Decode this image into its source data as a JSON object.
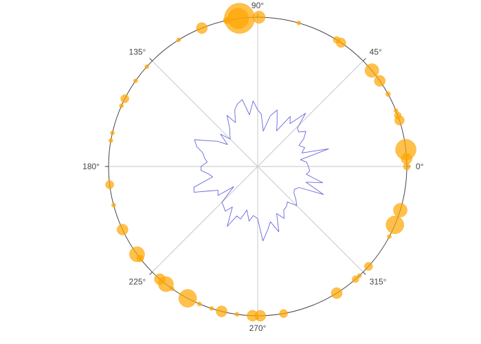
{
  "chart_data": {
    "type": "scatter",
    "subtype": "polar",
    "title": "",
    "angular_axis": {
      "tick_labels": [
        "0°",
        "45°",
        "90°",
        "135°",
        "180°",
        "225°",
        "270°",
        "315°"
      ],
      "tick_values": [
        0,
        45,
        90,
        135,
        180,
        225,
        270,
        315
      ],
      "direction": "counterclockwise",
      "rotation": 0
    },
    "radial_axis": {
      "range": [
        0,
        1
      ],
      "tick_labels_visible": false
    },
    "grid": true,
    "legend": "none",
    "series": [
      {
        "kind": "markers",
        "color": "#FFA500",
        "opacity": 0.7,
        "r": 1,
        "points": [
          {
            "theta": 0,
            "size": 10
          },
          {
            "theta": 6.5,
            "size": 30
          },
          {
            "theta": 3,
            "size": 16
          },
          {
            "theta": 18,
            "size": 14
          },
          {
            "theta": 20,
            "size": 10
          },
          {
            "theta": 22,
            "size": 6
          },
          {
            "theta": 29,
            "size": 7
          },
          {
            "theta": 35,
            "size": 16
          },
          {
            "theta": 40,
            "size": 20
          },
          {
            "theta": 56,
            "size": 14
          },
          {
            "theta": 58,
            "size": 10
          },
          {
            "theta": 74,
            "size": 6
          },
          {
            "theta": 89.5,
            "size": 18
          },
          {
            "theta": 97,
            "size": 44
          },
          {
            "theta": 97.5,
            "size": 30
          },
          {
            "theta": 102,
            "size": 10
          },
          {
            "theta": 112,
            "size": 16
          },
          {
            "theta": 122,
            "size": 6
          },
          {
            "theta": 138,
            "size": 6
          },
          {
            "theta": 145,
            "size": 6
          },
          {
            "theta": 153,
            "size": 12
          },
          {
            "theta": 156,
            "size": 6
          },
          {
            "theta": 167,
            "size": 6
          },
          {
            "theta": 170,
            "size": 6
          },
          {
            "theta": 187,
            "size": 12
          },
          {
            "theta": 195,
            "size": 6
          },
          {
            "theta": 205,
            "size": 16
          },
          {
            "theta": 216,
            "size": 22
          },
          {
            "theta": 218,
            "size": 10
          },
          {
            "theta": 229,
            "size": 16
          },
          {
            "theta": 232,
            "size": 22
          },
          {
            "theta": 235,
            "size": 6
          },
          {
            "theta": 242,
            "size": 26
          },
          {
            "theta": 247,
            "size": 6
          },
          {
            "theta": 252,
            "size": 6
          },
          {
            "theta": 256,
            "size": 16
          },
          {
            "theta": 262,
            "size": 6
          },
          {
            "theta": 268,
            "size": 16
          },
          {
            "theta": 271,
            "size": 16
          },
          {
            "theta": 280,
            "size": 12
          },
          {
            "theta": 302,
            "size": 16
          },
          {
            "theta": 311,
            "size": 10
          },
          {
            "theta": 313,
            "size": 6
          },
          {
            "theta": 318,
            "size": 12
          },
          {
            "theta": 332,
            "size": 6
          },
          {
            "theta": 337,
            "size": 26
          },
          {
            "theta": 343,
            "size": 20
          }
        ]
      },
      {
        "kind": "line",
        "color": "#6666dd",
        "points": [
          {
            "theta": 0,
            "r": 0.34
          },
          {
            "theta": 5,
            "r": 0.33
          },
          {
            "theta": 9,
            "r": 0.29
          },
          {
            "theta": 14,
            "r": 0.49
          },
          {
            "theta": 17,
            "r": 0.31
          },
          {
            "theta": 22,
            "r": 0.34
          },
          {
            "theta": 27,
            "r": 0.31
          },
          {
            "theta": 31,
            "r": 0.36
          },
          {
            "theta": 36,
            "r": 0.4
          },
          {
            "theta": 40,
            "r": 0.36
          },
          {
            "theta": 44,
            "r": 0.37
          },
          {
            "theta": 48,
            "r": 0.48
          },
          {
            "theta": 53,
            "r": 0.36
          },
          {
            "theta": 57,
            "r": 0.4
          },
          {
            "theta": 62,
            "r": 0.27
          },
          {
            "theta": 66,
            "r": 0.32
          },
          {
            "theta": 71,
            "r": 0.4
          },
          {
            "theta": 76,
            "r": 0.35
          },
          {
            "theta": 81,
            "r": 0.24
          },
          {
            "theta": 86,
            "r": 0.35
          },
          {
            "theta": 90,
            "r": 0.38
          },
          {
            "theta": 94,
            "r": 0.44
          },
          {
            "theta": 99,
            "r": 0.35
          },
          {
            "theta": 103,
            "r": 0.46
          },
          {
            "theta": 108,
            "r": 0.44
          },
          {
            "theta": 112,
            "r": 0.41
          },
          {
            "theta": 117,
            "r": 0.33
          },
          {
            "theta": 121,
            "r": 0.4
          },
          {
            "theta": 126,
            "r": 0.32
          },
          {
            "theta": 130,
            "r": 0.29
          },
          {
            "theta": 135,
            "r": 0.26
          },
          {
            "theta": 139,
            "r": 0.33
          },
          {
            "theta": 144,
            "r": 0.25
          },
          {
            "theta": 148,
            "r": 0.32
          },
          {
            "theta": 153,
            "r": 0.38
          },
          {
            "theta": 157,
            "r": 0.46
          },
          {
            "theta": 162,
            "r": 0.43
          },
          {
            "theta": 166,
            "r": 0.38
          },
          {
            "theta": 171,
            "r": 0.36
          },
          {
            "theta": 175,
            "r": 0.34
          },
          {
            "theta": 180,
            "r": 0.38
          },
          {
            "theta": 184,
            "r": 0.38
          },
          {
            "theta": 189,
            "r": 0.33
          },
          {
            "theta": 193,
            "r": 0.31
          },
          {
            "theta": 198,
            "r": 0.45
          },
          {
            "theta": 202,
            "r": 0.46
          },
          {
            "theta": 207,
            "r": 0.36
          },
          {
            "theta": 211,
            "r": 0.31
          },
          {
            "theta": 216,
            "r": 0.33
          },
          {
            "theta": 220,
            "r": 0.21
          },
          {
            "theta": 225,
            "r": 0.34
          },
          {
            "theta": 229,
            "r": 0.35
          },
          {
            "theta": 234,
            "r": 0.37
          },
          {
            "theta": 238,
            "r": 0.32
          },
          {
            "theta": 243,
            "r": 0.45
          },
          {
            "theta": 247,
            "r": 0.36
          },
          {
            "theta": 252,
            "r": 0.37
          },
          {
            "theta": 256,
            "r": 0.3
          },
          {
            "theta": 261,
            "r": 0.37
          },
          {
            "theta": 265,
            "r": 0.33
          },
          {
            "theta": 270,
            "r": 0.35
          },
          {
            "theta": 274,
            "r": 0.5
          },
          {
            "theta": 279,
            "r": 0.43
          },
          {
            "theta": 283,
            "r": 0.38
          },
          {
            "theta": 288,
            "r": 0.46
          },
          {
            "theta": 292,
            "r": 0.34
          },
          {
            "theta": 297,
            "r": 0.39
          },
          {
            "theta": 301,
            "r": 0.34
          },
          {
            "theta": 306,
            "r": 0.33
          },
          {
            "theta": 310,
            "r": 0.31
          },
          {
            "theta": 315,
            "r": 0.37
          },
          {
            "theta": 319,
            "r": 0.34
          },
          {
            "theta": 324,
            "r": 0.3
          },
          {
            "theta": 328,
            "r": 0.29
          },
          {
            "theta": 333,
            "r": 0.31
          },
          {
            "theta": 337,
            "r": 0.48
          },
          {
            "theta": 342,
            "r": 0.34
          },
          {
            "theta": 346,
            "r": 0.45
          },
          {
            "theta": 351,
            "r": 0.33
          },
          {
            "theta": 355,
            "r": 0.35
          }
        ]
      }
    ]
  }
}
